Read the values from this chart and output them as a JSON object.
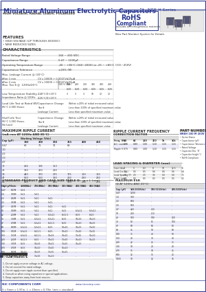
{
  "title": "Miniature Aluminum Electrolytic Capacitors",
  "series": "NRE-H Series",
  "title_color": "#2b3990",
  "bg_color": "#ffffff",
  "line_color": "#2b3990",
  "header_color": "#2b3990"
}
